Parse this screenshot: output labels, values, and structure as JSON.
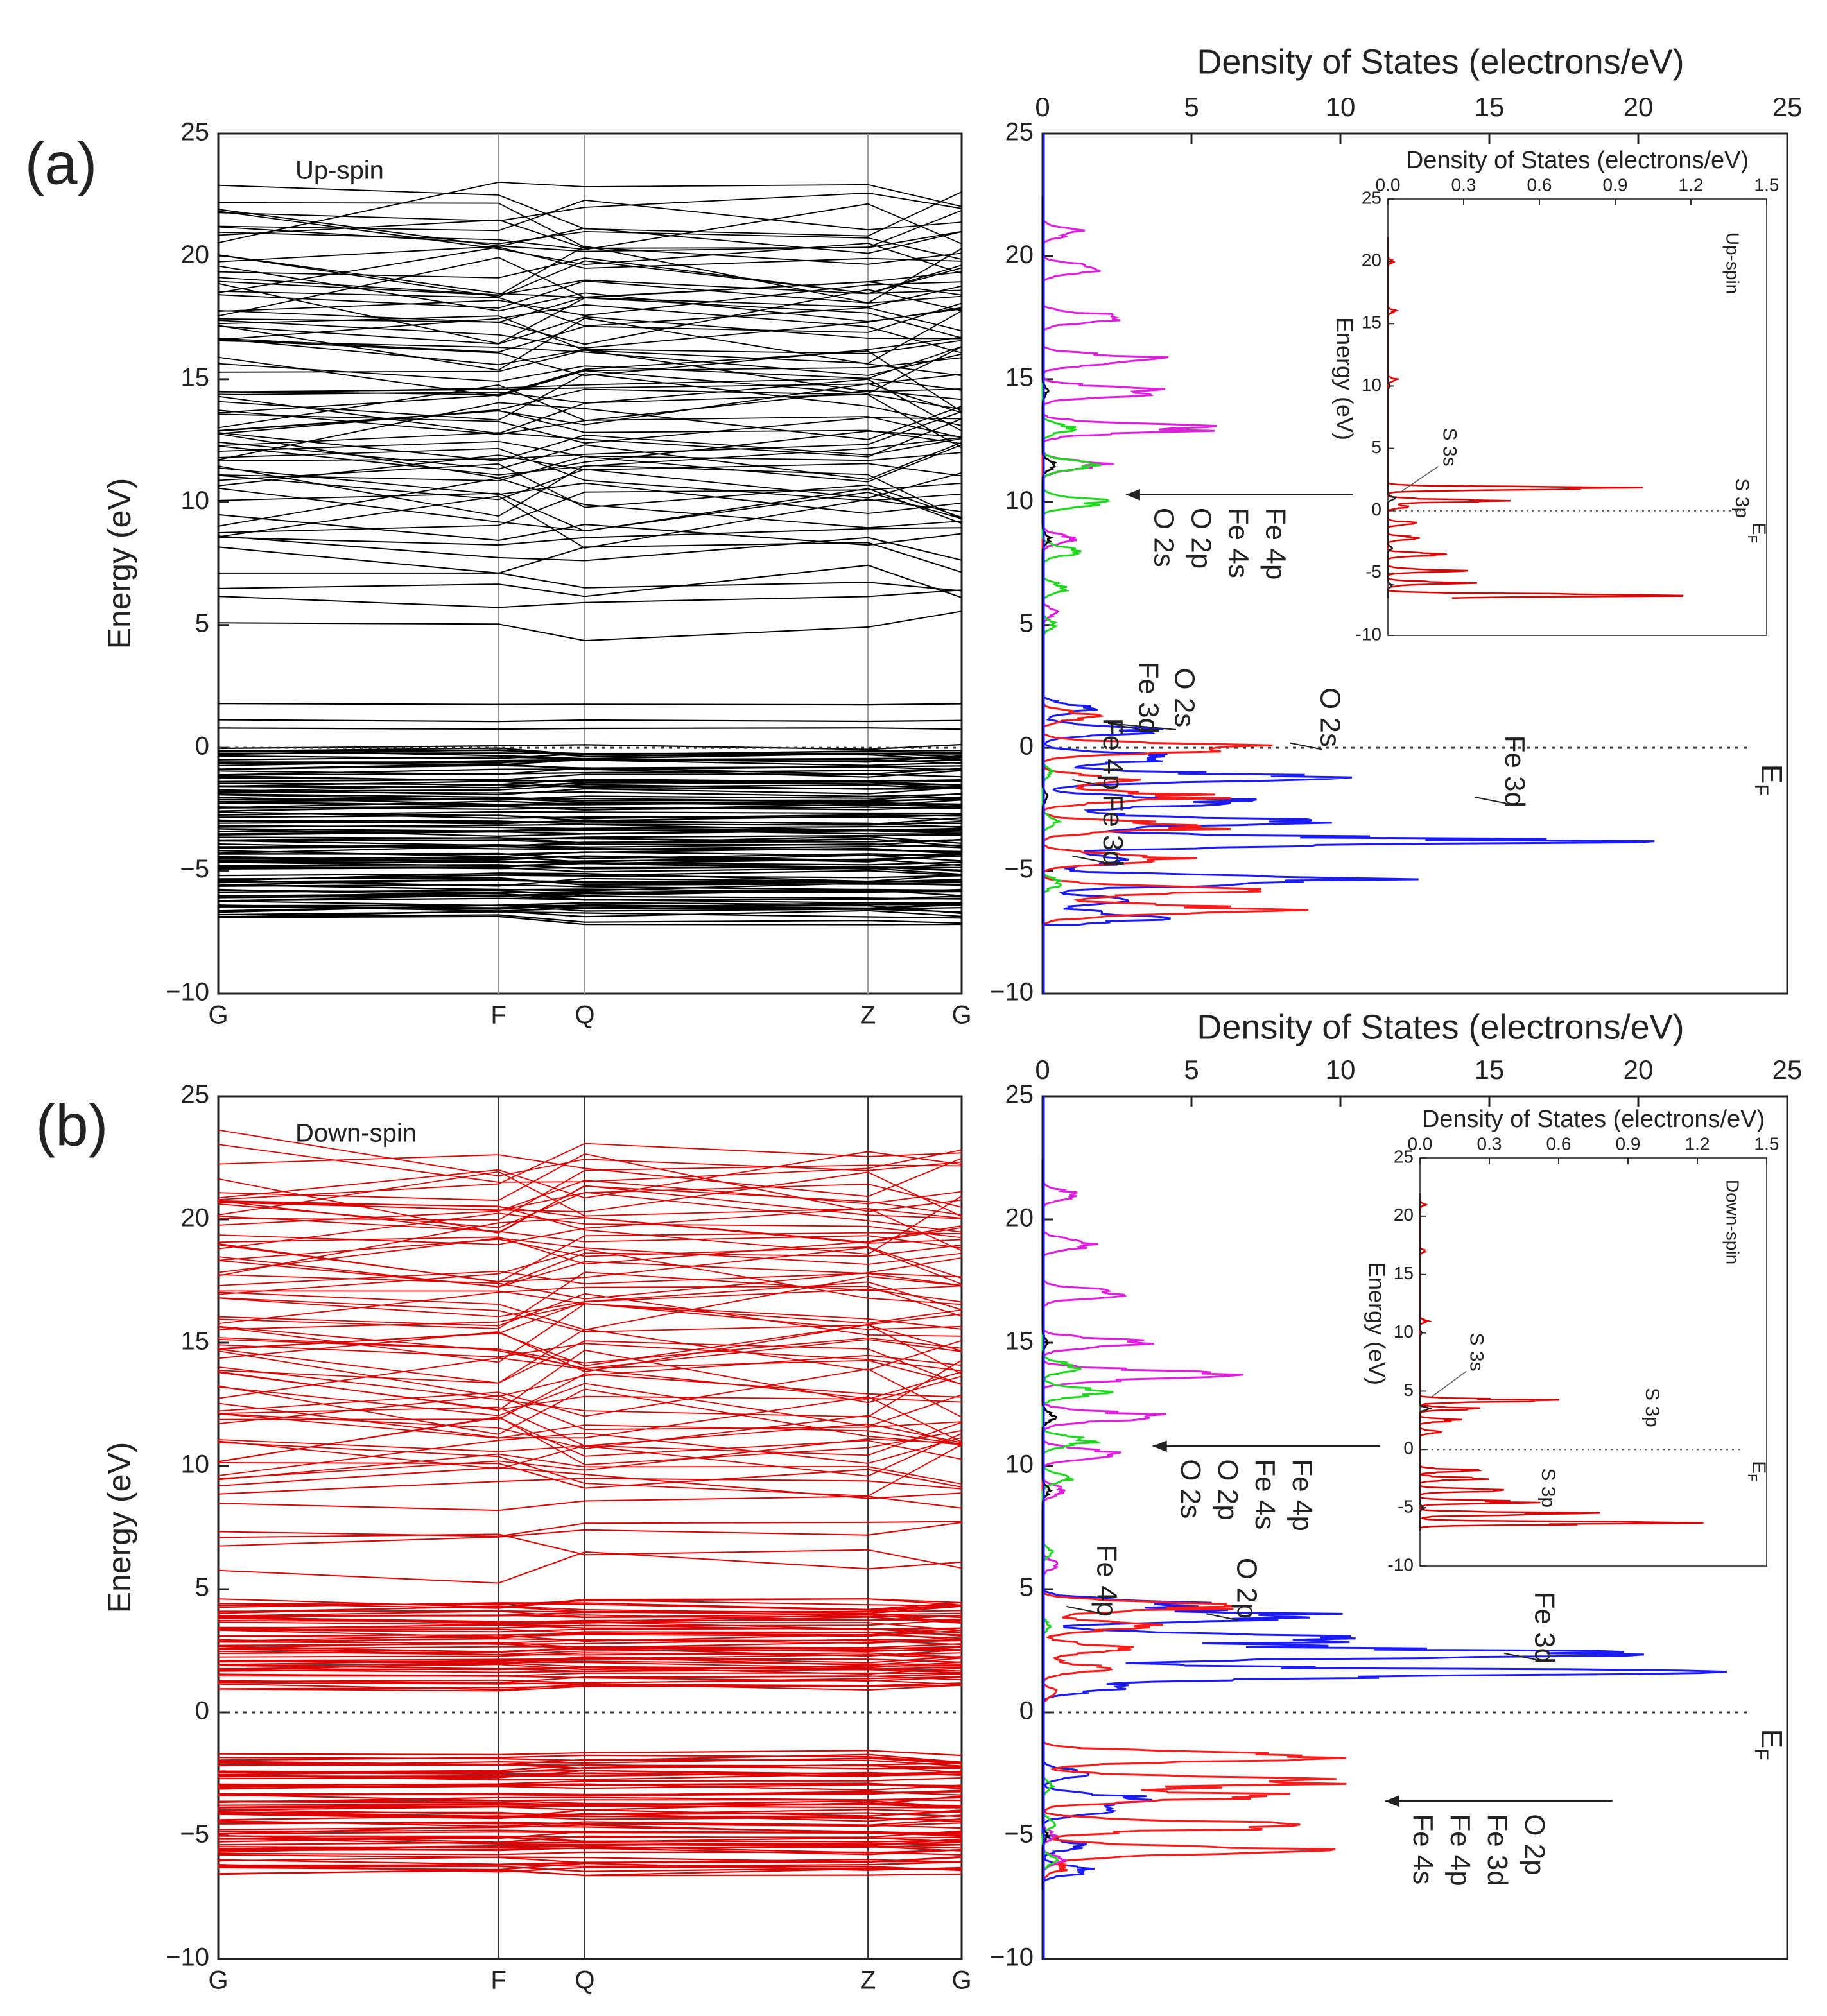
{
  "panels": [
    {
      "panel_label": "(a)",
      "band": {
        "spin_label": "Up-spin",
        "ylabel": "Energy (eV)",
        "ylim": [
          -10,
          25
        ],
        "yticks": [
          -10,
          -5,
          0,
          5,
          10,
          15,
          20,
          25
        ],
        "kpoint_labels": [
          "G",
          "F",
          "Q",
          "Z",
          "G"
        ],
        "kpoint_positions": [
          0,
          0.377,
          0.493,
          0.874,
          1.0
        ],
        "line_color": "#000000",
        "bands_valence": [
          -6.9,
          -6.7,
          -6.5,
          -6.3,
          -6.1,
          -5.9,
          -5.8,
          -5.6,
          -5.4,
          -5.2,
          -5.0,
          -4.8,
          -4.6,
          -4.4,
          -4.2,
          -4.0,
          -3.8,
          -3.7,
          -3.5,
          -3.3,
          -3.1,
          -2.9,
          -2.7,
          -2.5,
          -2.3,
          -2.1,
          -1.9,
          -1.7,
          -1.5,
          -1.3,
          -1.1,
          -0.9,
          -0.7,
          -0.5,
          -0.3,
          -0.1
        ],
        "bands_gap": [
          0.8,
          1.1,
          1.8
        ],
        "bands_conduction_low": [
          5.1,
          6.4,
          6.7,
          7.0,
          7.6,
          8.2,
          8.6,
          9.0
        ],
        "conduction_range": [
          9.4,
          21.8
        ],
        "fermi_line": true
      },
      "dos": {
        "title": "Density of States (electrons/eV)",
        "xlim": [
          0,
          25
        ],
        "xticks": [
          0,
          5,
          10,
          15,
          20,
          25
        ],
        "ylim": [
          -10,
          25
        ],
        "yticks": [
          -10,
          -5,
          0,
          5,
          10,
          15,
          20,
          25
        ],
        "ef_label": "EF",
        "series": [
          {
            "name": "Fe 3d",
            "color": "#1a1aff",
            "peaks": [
              [
                -6.9,
                5.0
              ],
              [
                -6.2,
                3.0
              ],
              [
                -5.4,
                14.0
              ],
              [
                -4.6,
                4.0
              ],
              [
                -3.8,
                21.8
              ],
              [
                -3.0,
                11.0
              ],
              [
                -2.2,
                9.0
              ],
              [
                -1.2,
                11.0
              ],
              [
                -0.4,
                6.0
              ],
              [
                0.7,
                4.5
              ],
              [
                1.6,
                2.0
              ]
            ]
          },
          {
            "name": "O 2s",
            "color": "#ff1a1a",
            "peaks": [
              [
                -6.6,
                10.0
              ],
              [
                -5.8,
                8.0
              ],
              [
                -4.5,
                6.0
              ],
              [
                -3.2,
                7.5
              ],
              [
                -2.0,
                7.0
              ],
              [
                -1.3,
                3.5
              ],
              [
                0.0,
                9.5
              ],
              [
                1.3,
                2.0
              ]
            ]
          },
          {
            "name": "O 2p",
            "color": "#e01ee0",
            "peaks": [
              [
                5.5,
                0.6
              ],
              [
                8.5,
                1.2
              ],
              [
                11.5,
                2.5
              ],
              [
                13.0,
                7.0
              ],
              [
                14.5,
                5.5
              ],
              [
                15.8,
                5.0
              ],
              [
                17.5,
                3.5
              ],
              [
                19.5,
                2.5
              ],
              [
                21.0,
                1.5
              ]
            ]
          },
          {
            "name": "Fe 4s",
            "color": "#1ed81e",
            "peaks": [
              [
                5.0,
                0.5
              ],
              [
                6.5,
                1.0
              ],
              [
                8.0,
                1.5
              ],
              [
                10.0,
                2.6
              ],
              [
                11.5,
                2.0
              ],
              [
                13.0,
                1.2
              ],
              [
                -5.5,
                0.8
              ],
              [
                -3.0,
                0.6
              ],
              [
                -1.0,
                0.4
              ]
            ]
          },
          {
            "name": "Fe 4p",
            "color": "#000000",
            "peaks": [
              [
                8.5,
                0.3
              ],
              [
                11.5,
                0.5
              ],
              [
                14.5,
                0.2
              ],
              [
                -2.0,
                0.2
              ]
            ]
          }
        ],
        "annotations": [
          {
            "lines": [
              "Fe 4p",
              "Fe 4s",
              "O 2p",
              "O 2s"
            ],
            "at_energy": 10.3,
            "at_dos": 2.8
          },
          {
            "lines": [
              "Fe 3d",
              "O 2s"
            ],
            "at_energy": 1.0,
            "at_dos": 2.2
          },
          {
            "lines": [
              "O 2s"
            ],
            "at_energy": 0.2,
            "at_dos": 8.3
          },
          {
            "lines": [
              "Fe 4p"
            ],
            "at_energy": -1.3,
            "at_dos": 1.0
          },
          {
            "lines": [
              "Fe 3d"
            ],
            "at_energy": -4.4,
            "at_dos": 1.0
          },
          {
            "lines": [
              "Fe 3d"
            ],
            "at_energy": -2.0,
            "at_dos": 14.5
          }
        ],
        "inset": {
          "title": "Density of States (electrons/eV)",
          "ylabel": "Energy (eV)",
          "spin_label": "Up-spin",
          "xlim": [
            0,
            1.5
          ],
          "xticks": [
            "0.0",
            "0.3",
            "0.6",
            "0.9",
            "1.2",
            "1.5"
          ],
          "ylim": [
            -10,
            25
          ],
          "yticks": [
            -10,
            -5,
            0,
            5,
            10,
            15,
            20,
            25
          ],
          "ef_label": "EF",
          "labels": [
            "S 3s",
            "S 3p"
          ],
          "red_peaks": [
            [
              -6.8,
              1.5
            ],
            [
              -5.8,
              0.4
            ],
            [
              -4.8,
              0.35
            ],
            [
              -3.5,
              0.3
            ],
            [
              -2.2,
              0.2
            ],
            [
              -1.0,
              0.15
            ],
            [
              0.3,
              0.1
            ],
            [
              0.8,
              0.5
            ],
            [
              1.8,
              1.2
            ],
            [
              10.5,
              0.05
            ],
            [
              16.0,
              0.04
            ],
            [
              20.0,
              0.03
            ]
          ],
          "black_peaks": [
            [
              -6.0,
              0.02
            ],
            [
              -3.0,
              0.02
            ],
            [
              1.0,
              0.04
            ],
            [
              10.0,
              0.01
            ]
          ]
        }
      }
    },
    {
      "panel_label": "(b)",
      "band": {
        "spin_label": "Down-spin",
        "ylabel": "Energy (eV)",
        "ylim": [
          -10,
          25
        ],
        "yticks": [
          -10,
          -5,
          0,
          5,
          10,
          15,
          20,
          25
        ],
        "kpoint_labels": [
          "G",
          "F",
          "Q",
          "Z",
          "G"
        ],
        "kpoint_positions": [
          0,
          0.377,
          0.493,
          0.874,
          1.0
        ],
        "line_color": "#e00000",
        "bands_valence": [
          -6.4,
          -6.2,
          -6.0,
          -5.8,
          -5.6,
          -5.4,
          -5.2,
          -5.0,
          -4.8,
          -4.6,
          -4.4,
          -4.2,
          -4.0,
          -3.8,
          -3.6,
          -3.4,
          -3.2,
          -3.0,
          -2.8,
          -2.6,
          -2.4,
          -2.2,
          -2.0,
          -1.8
        ],
        "bands_gap": [],
        "bands_middle_range": [
          1.0,
          4.5
        ],
        "bands_conduction_low": [
          5.9,
          6.5,
          7.0,
          7.4,
          8.0,
          8.8,
          9.3,
          9.7
        ],
        "conduction_range": [
          10.0,
          22.4
        ],
        "fermi_line": true
      },
      "dos": {
        "title": "Density of States (electrons/eV)",
        "xlim": [
          0,
          25
        ],
        "xticks": [
          0,
          5,
          10,
          15,
          20,
          25
        ],
        "ylim": [
          -10,
          25
        ],
        "yticks": [
          -10,
          -5,
          0,
          5,
          10,
          15,
          20,
          25
        ],
        "ef_label": "EF",
        "series": [
          {
            "name": "Fe 3d",
            "color": "#1a1aff",
            "peaks": [
              [
                -6.4,
                2.0
              ],
              [
                -5.4,
                1.6
              ],
              [
                -4.0,
                2.5
              ],
              [
                -3.5,
                4.2
              ],
              [
                -2.5,
                2.0
              ],
              [
                1.0,
                3.0
              ],
              [
                1.6,
                25.0
              ],
              [
                2.4,
                25.0
              ],
              [
                3.0,
                14.0
              ],
              [
                3.9,
                11.5
              ],
              [
                4.4,
                6.0
              ]
            ]
          },
          {
            "name": "O 2p",
            "color": "#ff1a1a",
            "peaks": [
              [
                -6.3,
                1.0
              ],
              [
                -5.6,
                10.5
              ],
              [
                -4.6,
                11.0
              ],
              [
                -3.4,
                10.0
              ],
              [
                -2.8,
                12.0
              ],
              [
                -1.8,
                12.5
              ],
              [
                0.8,
                0.6
              ],
              [
                1.8,
                2.5
              ],
              [
                2.6,
                3.2
              ],
              [
                3.5,
                4.5
              ],
              [
                4.3,
                7.5
              ]
            ]
          },
          {
            "name": "Fe 4s",
            "color": "#e01ee0",
            "peaks": [
              [
                6.0,
                0.6
              ],
              [
                9.0,
                1.0
              ],
              [
                10.5,
                3.5
              ],
              [
                12.0,
                5.0
              ],
              [
                13.7,
                7.5
              ],
              [
                15.0,
                4.0
              ],
              [
                17.0,
                3.5
              ],
              [
                19.0,
                2.5
              ],
              [
                21.0,
                1.5
              ],
              [
                -6.0,
                0.8
              ],
              [
                -5.0,
                0.5
              ]
            ]
          },
          {
            "name": "Fe 4p",
            "color": "#1ed81e",
            "peaks": [
              [
                6.5,
                0.4
              ],
              [
                9.5,
                1.2
              ],
              [
                11.0,
                2.0
              ],
              [
                13.0,
                2.5
              ],
              [
                14.0,
                1.5
              ],
              [
                -6.0,
                0.6
              ],
              [
                -4.5,
                0.5
              ],
              [
                -3.0,
                0.4
              ],
              [
                3.5,
                0.3
              ]
            ]
          },
          {
            "name": "O 2s",
            "color": "#000000",
            "peaks": [
              [
                9.0,
                0.3
              ],
              [
                12.0,
                0.5
              ],
              [
                15.0,
                0.2
              ],
              [
                -5.0,
                0.2
              ]
            ]
          }
        ],
        "annotations": [
          {
            "lines": [
              "Fe 4p",
              "Fe 4s",
              "O 2p",
              "O 2s"
            ],
            "at_energy": 10.8,
            "at_dos": 3.7
          },
          {
            "lines": [
              "O 2p"
            ],
            "at_energy": 4.0,
            "at_dos": 5.5
          },
          {
            "lines": [
              "Fe 4p"
            ],
            "at_energy": 4.3,
            "at_dos": 0.8
          },
          {
            "lines": [
              "Fe 3d"
            ],
            "at_energy": 2.4,
            "at_dos": 15.5
          },
          {
            "lines": [
              "O 2p",
              "Fe 3d",
              "Fe 4p",
              "Fe 4s"
            ],
            "at_energy": -3.6,
            "at_dos": 11.5
          }
        ],
        "inset": {
          "title": "Density of States (electrons/eV)",
          "ylabel": "Energy (eV)",
          "spin_label": "Down-spin",
          "xlim": [
            0,
            1.5
          ],
          "xticks": [
            "0.0",
            "0.3",
            "0.6",
            "0.9",
            "1.2",
            "1.5"
          ],
          "ylim": [
            -10,
            25
          ],
          "yticks": [
            -10,
            -5,
            0,
            5,
            10,
            15,
            20,
            25
          ],
          "ef_label": "EF",
          "labels": [
            "S 3s",
            "S 3p",
            "S 3p"
          ],
          "red_peaks": [
            [
              -6.3,
              1.5
            ],
            [
              -5.5,
              0.9
            ],
            [
              -4.5,
              0.6
            ],
            [
              -3.5,
              0.5
            ],
            [
              -2.5,
              0.4
            ],
            [
              -1.8,
              0.3
            ],
            [
              1.5,
              0.1
            ],
            [
              2.5,
              0.2
            ],
            [
              3.5,
              0.3
            ],
            [
              4.2,
              0.7
            ],
            [
              11.0,
              0.04
            ],
            [
              17.0,
              0.03
            ],
            [
              21.0,
              0.03
            ]
          ],
          "black_peaks": [
            [
              -5.0,
              0.02
            ],
            [
              3.5,
              0.05
            ],
            [
              10.0,
              0.01
            ]
          ]
        }
      }
    }
  ],
  "chart_data": [
    {
      "type": "line",
      "title": "",
      "panel": "(a)",
      "xlabel": "",
      "ylabel": "Energy (eV)",
      "ylim": [
        -10,
        25
      ],
      "categories": [
        "G",
        "F",
        "Q",
        "Z",
        "G"
      ],
      "series_note_label": "Up-spin"
    },
    {
      "type": "line",
      "title": "Density of States (electrons/eV)",
      "panel": "(a)",
      "xlim": [
        0,
        25
      ],
      "ylim": [
        -10,
        25
      ],
      "series": [
        {
          "name": "Fe 3d"
        },
        {
          "name": "O 2s"
        },
        {
          "name": "O 2p"
        },
        {
          "name": "Fe 4s"
        },
        {
          "name": "Fe 4p"
        }
      ]
    },
    {
      "type": "line",
      "title": "",
      "panel": "(b)",
      "xlabel": "",
      "ylabel": "Energy (eV)",
      "ylim": [
        -10,
        25
      ],
      "categories": [
        "G",
        "F",
        "Q",
        "Z",
        "G"
      ],
      "series_note_label": "Down-spin"
    },
    {
      "type": "line",
      "title": "Density of States (electrons/eV)",
      "panel": "(b)",
      "xlim": [
        0,
        25
      ],
      "ylim": [
        -10,
        25
      ],
      "series": [
        {
          "name": "Fe 3d"
        },
        {
          "name": "O 2p"
        },
        {
          "name": "Fe 4s"
        },
        {
          "name": "Fe 4p"
        },
        {
          "name": "O 2s"
        }
      ]
    }
  ]
}
